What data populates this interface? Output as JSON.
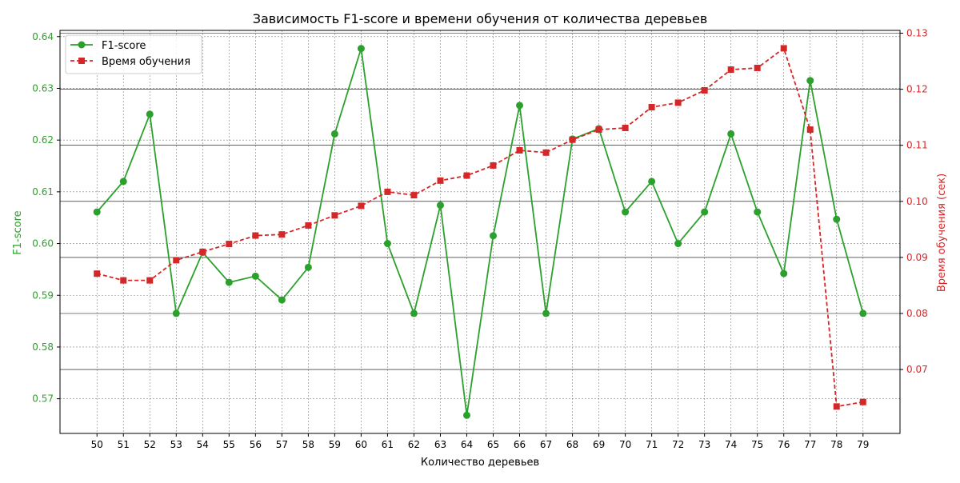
{
  "chart_data": {
    "type": "line",
    "title": "Зависимость F1-score и времени обучения от количества деревьев",
    "xlabel": "Количество деревьев",
    "ylabel_left": "F1-score",
    "ylabel_right": "Время обучения (сек)",
    "x": [
      50,
      51,
      52,
      53,
      54,
      55,
      56,
      57,
      58,
      59,
      60,
      61,
      62,
      63,
      64,
      65,
      66,
      67,
      68,
      69,
      70,
      71,
      72,
      73,
      74,
      75,
      76,
      77,
      78,
      79
    ],
    "xlim": [
      48.6,
      80.4
    ],
    "ylim_left": [
      0.5633,
      0.6412
    ],
    "ylim_right": [
      0.0586,
      0.1305
    ],
    "yticks_left": [
      "0.57",
      "0.58",
      "0.59",
      "0.60",
      "0.61",
      "0.62",
      "0.63",
      "0.64"
    ],
    "yticks_left_values": [
      0.57,
      0.58,
      0.59,
      0.6,
      0.61,
      0.62,
      0.63,
      0.64
    ],
    "yticks_right": [
      "0.07",
      "0.08",
      "0.09",
      "0.10",
      "0.11",
      "0.12",
      "0.13"
    ],
    "yticks_right_values": [
      0.07,
      0.08,
      0.09,
      0.1,
      0.11,
      0.12,
      0.13
    ],
    "grid": true,
    "legend_position": "top-left",
    "series": [
      {
        "name": "F1-score",
        "axis": "left",
        "color": "#2ca02c",
        "marker": "circle",
        "linestyle": "solid",
        "values": [
          0.6061,
          0.612,
          0.625,
          0.5865,
          0.5983,
          0.5925,
          0.5937,
          0.5891,
          0.5954,
          0.6212,
          0.6377,
          0.6,
          0.5865,
          0.6074,
          0.5668,
          0.6015,
          0.6267,
          0.5865,
          0.6202,
          0.6222,
          0.6061,
          0.612,
          0.6,
          0.6061,
          0.6212,
          0.6061,
          0.5942,
          0.6315,
          0.6047,
          0.5865
        ]
      },
      {
        "name": "Время обучения",
        "axis": "right",
        "color": "#d62728",
        "marker": "square",
        "linestyle": "dashed",
        "values": [
          0.0871,
          0.0859,
          0.0859,
          0.0895,
          0.091,
          0.0924,
          0.0939,
          0.0941,
          0.0957,
          0.0975,
          0.0992,
          0.1017,
          0.1011,
          0.1037,
          0.1046,
          0.1064,
          0.1091,
          0.1087,
          0.111,
          0.1128,
          0.1131,
          0.1168,
          0.1176,
          0.1198,
          0.1235,
          0.1238,
          0.1273,
          0.1128,
          0.0634,
          0.0642
        ]
      }
    ]
  }
}
